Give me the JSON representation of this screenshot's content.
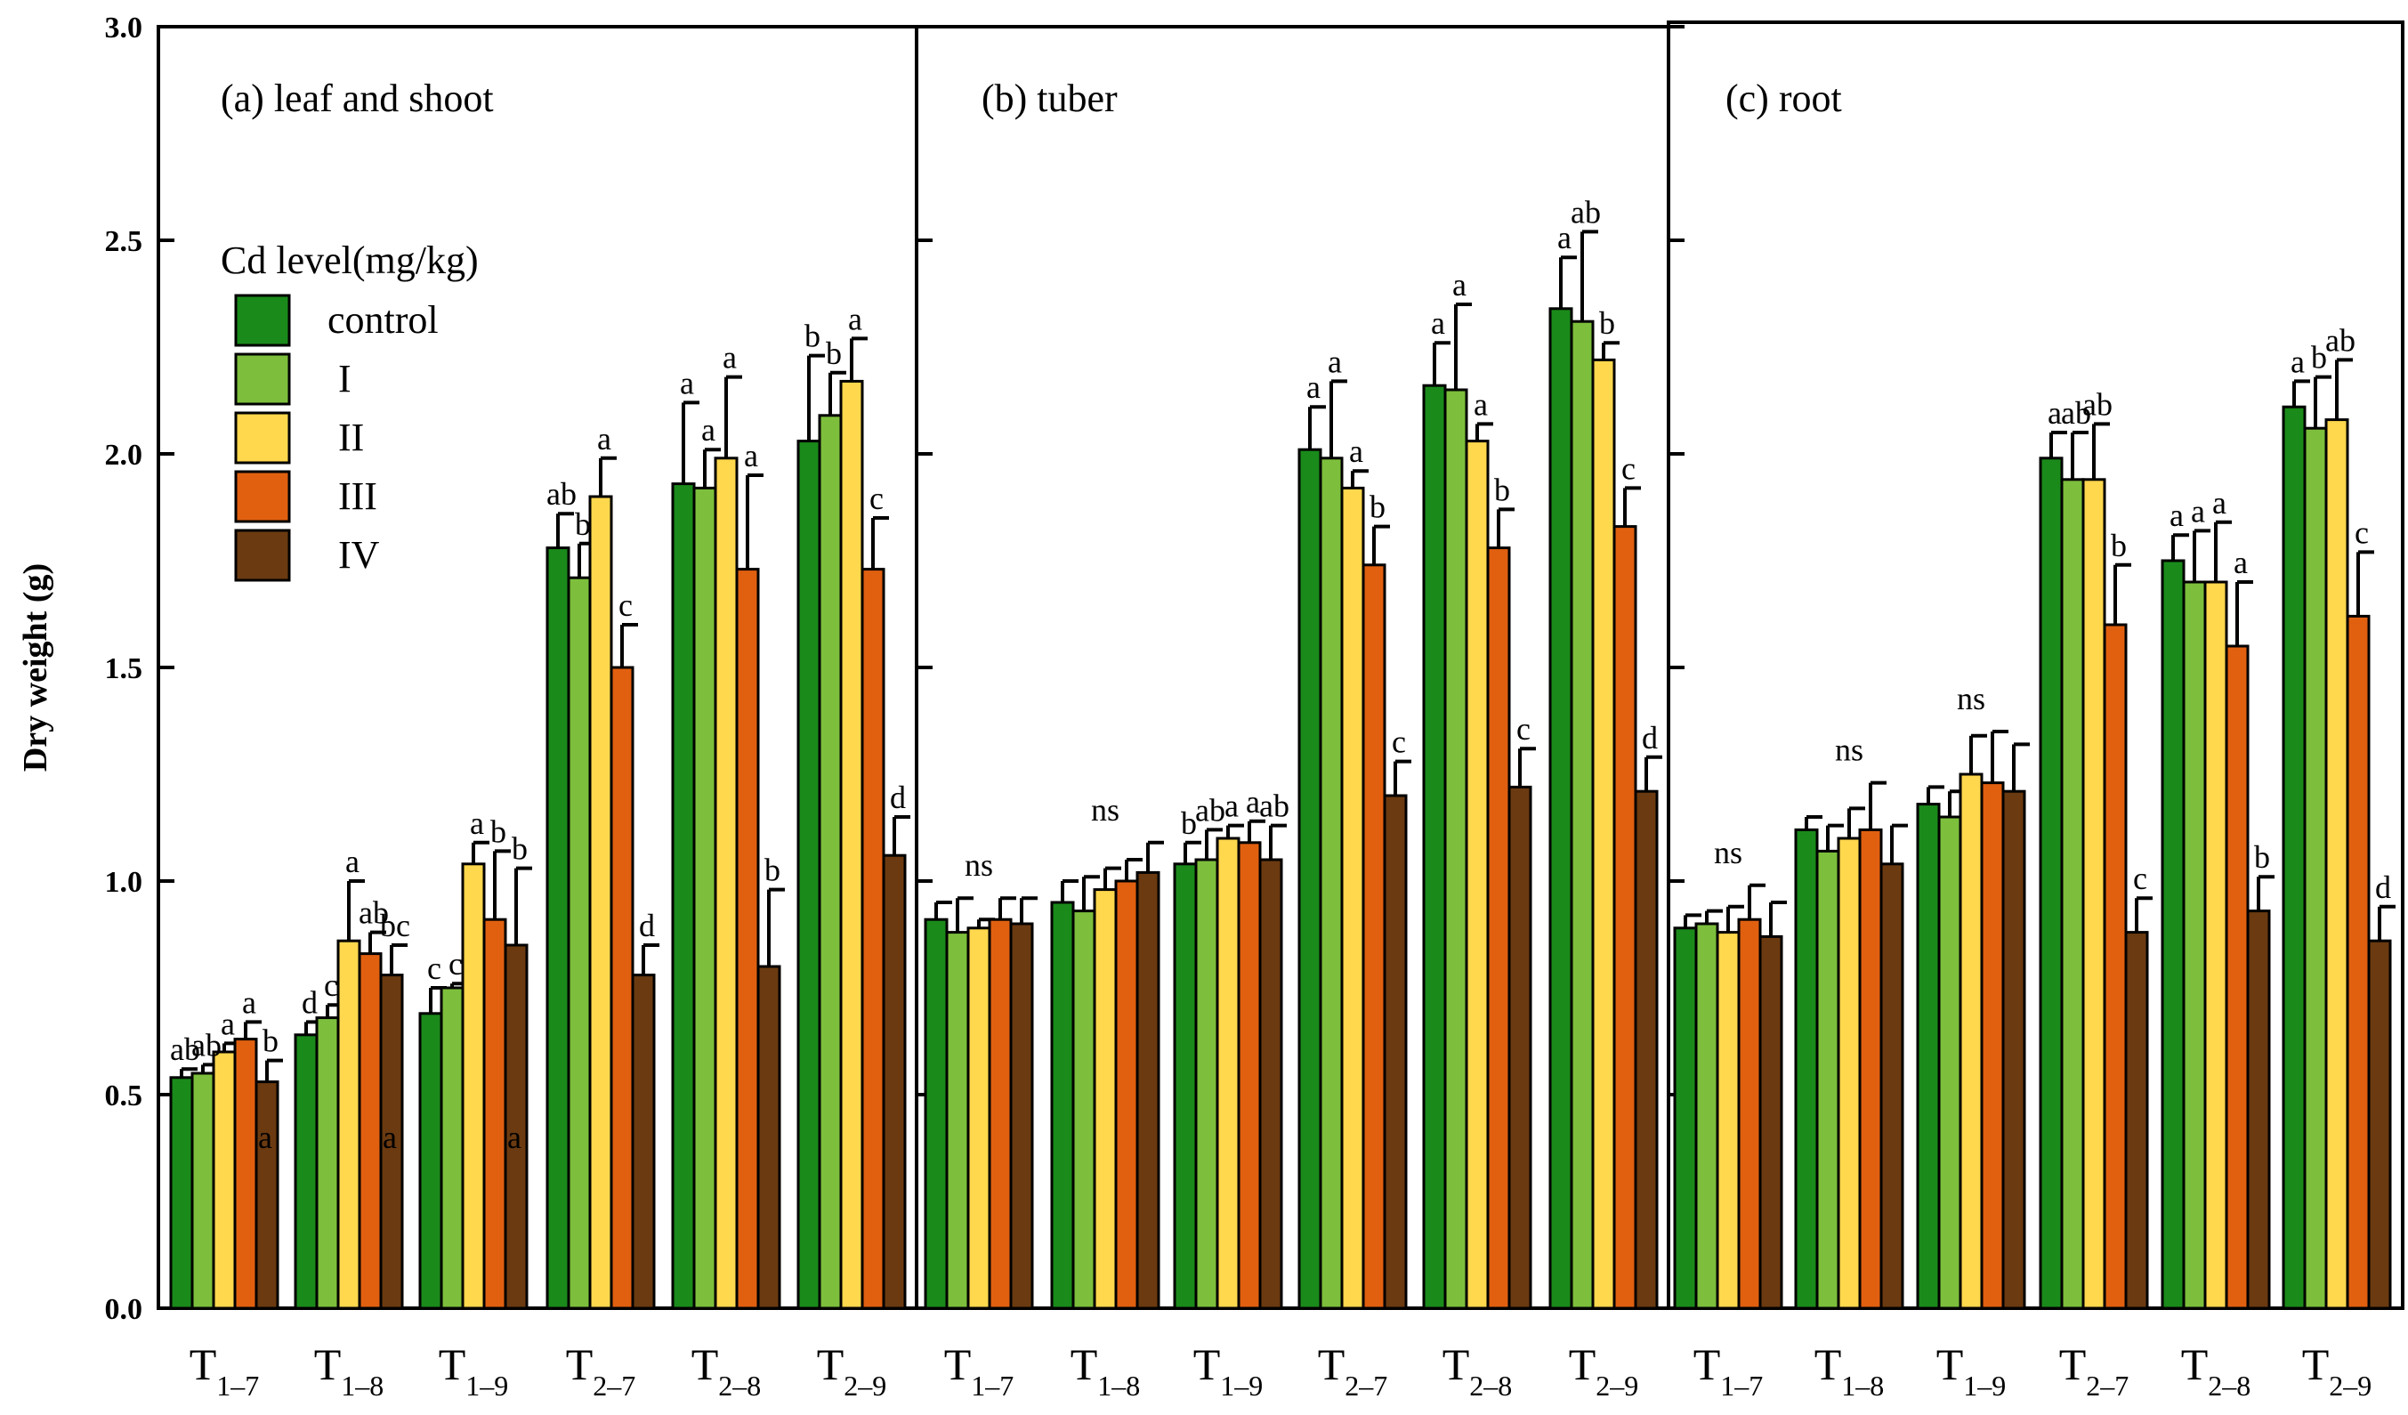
{
  "chart_data": {
    "type": "bar",
    "ylabel": "Dry weight (g)",
    "ylim": [
      0,
      3.0
    ],
    "yticks": [
      "0.0",
      "0.5",
      "1.0",
      "1.5",
      "2.0",
      "2.5",
      "3.0"
    ],
    "legend": {
      "title": "Cd level(mg/kg)",
      "entries": [
        "control",
        "I",
        "II",
        "III",
        "IV"
      ],
      "placement": "upper-left of panel (a)"
    },
    "series_colors": [
      "#1a8a1a",
      "#7dbf3c",
      "#ffd84d",
      "#e06010",
      "#6b3a10"
    ],
    "categories": [
      {
        "main": "T",
        "sub": "1–7"
      },
      {
        "main": "T",
        "sub": "1–8"
      },
      {
        "main": "T",
        "sub": "1–9"
      },
      {
        "main": "T",
        "sub": "2–7"
      },
      {
        "main": "T",
        "sub": "2–8"
      },
      {
        "main": "T",
        "sub": "2–9"
      }
    ],
    "panels": [
      {
        "title": "(a) leaf and shoot",
        "groups": [
          {
            "values": [
              0.54,
              0.55,
              0.6,
              0.63,
              0.53
            ],
            "errors": [
              0.02,
              0.02,
              0.02,
              0.04,
              0.05
            ],
            "letters": [
              "ab",
              "ab",
              "a",
              "a",
              "b"
            ],
            "ns": null,
            "extra_letter": "a"
          },
          {
            "values": [
              0.64,
              0.68,
              0.86,
              0.83,
              0.78
            ],
            "errors": [
              0.03,
              0.03,
              0.14,
              0.05,
              0.07
            ],
            "letters": [
              "d",
              "c",
              "a",
              "ab",
              "bc"
            ],
            "ns": null,
            "extra_letter": "a"
          },
          {
            "values": [
              0.69,
              0.75,
              1.04,
              0.91,
              0.85
            ],
            "errors": [
              0.06,
              0.01,
              0.05,
              0.16,
              0.18
            ],
            "letters": [
              "c",
              "c",
              "a",
              "b",
              "b"
            ],
            "ns": null,
            "extra_letter": "a"
          },
          {
            "values": [
              1.78,
              1.71,
              1.9,
              1.5,
              0.78
            ],
            "errors": [
              0.08,
              0.08,
              0.09,
              0.1,
              0.07
            ],
            "letters": [
              "ab",
              "b",
              "a",
              "c",
              "d"
            ],
            "ns": null,
            "extra_letter": null
          },
          {
            "values": [
              1.93,
              1.92,
              1.99,
              1.73,
              0.8
            ],
            "errors": [
              0.19,
              0.09,
              0.19,
              0.22,
              0.18
            ],
            "letters": [
              "a",
              "a",
              "a",
              "a",
              "b"
            ],
            "ns": null,
            "extra_letter": null
          },
          {
            "values": [
              2.03,
              2.09,
              2.17,
              1.73,
              1.06
            ],
            "errors": [
              0.2,
              0.1,
              0.1,
              0.12,
              0.09
            ],
            "letters": [
              "b",
              "b",
              "a",
              "c",
              "d"
            ],
            "ns": null,
            "extra_letter": null
          }
        ]
      },
      {
        "title": "(b) tuber",
        "groups": [
          {
            "values": [
              0.91,
              0.88,
              0.89,
              0.91,
              0.9
            ],
            "errors": [
              0.04,
              0.08,
              0.02,
              0.05,
              0.06
            ],
            "letters": [
              "",
              "",
              "",
              "",
              ""
            ],
            "ns": "ns",
            "extra_letter": null
          },
          {
            "values": [
              0.95,
              0.93,
              0.98,
              1.0,
              1.02
            ],
            "errors": [
              0.05,
              0.08,
              0.05,
              0.05,
              0.07
            ],
            "letters": [
              "",
              "",
              "",
              "",
              ""
            ],
            "ns": "ns",
            "extra_letter": null
          },
          {
            "values": [
              1.04,
              1.05,
              1.1,
              1.09,
              1.05
            ],
            "errors": [
              0.05,
              0.07,
              0.03,
              0.05,
              0.08
            ],
            "letters": [
              "b",
              "ab",
              "a",
              "a",
              "ab"
            ],
            "ns": null,
            "extra_letter": null
          },
          {
            "values": [
              2.01,
              1.99,
              1.92,
              1.74,
              1.2
            ],
            "errors": [
              0.1,
              0.18,
              0.04,
              0.09,
              0.08
            ],
            "letters": [
              "a",
              "a",
              "a",
              "b",
              "c"
            ],
            "ns": null,
            "extra_letter": null
          },
          {
            "values": [
              2.16,
              2.15,
              2.03,
              1.78,
              1.22
            ],
            "errors": [
              0.1,
              0.2,
              0.04,
              0.09,
              0.09
            ],
            "letters": [
              "a",
              "a",
              "a",
              "b",
              "c"
            ],
            "ns": null,
            "extra_letter": null
          },
          {
            "values": [
              2.34,
              2.31,
              2.22,
              1.83,
              1.21
            ],
            "errors": [
              0.12,
              0.21,
              0.04,
              0.09,
              0.08
            ],
            "letters": [
              "a",
              "ab",
              "b",
              "c",
              "d"
            ],
            "ns": null,
            "extra_letter": null
          }
        ]
      },
      {
        "title": "(c) root",
        "groups": [
          {
            "values": [
              0.89,
              0.9,
              0.88,
              0.91,
              0.87
            ],
            "errors": [
              0.03,
              0.03,
              0.06,
              0.08,
              0.08
            ],
            "letters": [
              "",
              "",
              "",
              "",
              ""
            ],
            "ns": "ns",
            "extra_letter": null
          },
          {
            "values": [
              1.12,
              1.07,
              1.1,
              1.12,
              1.04
            ],
            "errors": [
              0.03,
              0.06,
              0.07,
              0.11,
              0.09
            ],
            "letters": [
              "",
              "",
              "",
              "",
              ""
            ],
            "ns": "ns",
            "extra_letter": null
          },
          {
            "values": [
              1.18,
              1.15,
              1.25,
              1.23,
              1.21
            ],
            "errors": [
              0.04,
              0.06,
              0.09,
              0.12,
              0.11
            ],
            "letters": [
              "",
              "",
              "",
              "",
              ""
            ],
            "ns": "ns",
            "extra_letter": null
          },
          {
            "values": [
              1.99,
              1.94,
              1.94,
              1.6,
              0.88
            ],
            "errors": [
              0.06,
              0.11,
              0.13,
              0.14,
              0.08
            ],
            "letters": [
              "a",
              "ab",
              "ab",
              "b",
              "c"
            ],
            "ns": null,
            "extra_letter": null
          },
          {
            "values": [
              1.75,
              1.7,
              1.7,
              1.55,
              0.93
            ],
            "errors": [
              0.06,
              0.12,
              0.14,
              0.15,
              0.08
            ],
            "letters": [
              "a",
              "a",
              "a",
              "a",
              "b"
            ],
            "ns": null,
            "extra_letter": null
          },
          {
            "values": [
              2.11,
              2.06,
              2.08,
              1.62,
              0.86
            ],
            "errors": [
              0.06,
              0.12,
              0.14,
              0.15,
              0.08
            ],
            "letters": [
              "a",
              "b",
              "ab",
              "c",
              "d"
            ],
            "ns": null,
            "extra_letter": null
          }
        ]
      }
    ]
  }
}
